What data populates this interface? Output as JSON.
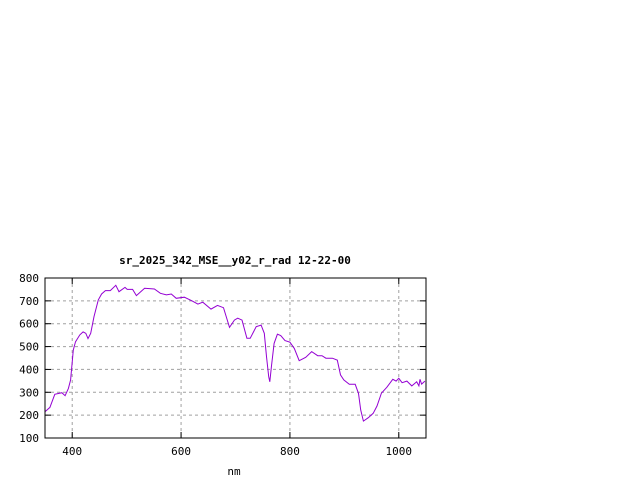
{
  "chart_data": {
    "type": "line",
    "title": "sr_2025_342_MSE__y02_r_rad 12-22-00",
    "xlabel": "nm",
    "ylabel": "",
    "xlim": [
      350,
      1050
    ],
    "ylim": [
      100,
      800
    ],
    "xticks": [
      400,
      600,
      800,
      1000
    ],
    "yticks": [
      100,
      200,
      300,
      400,
      500,
      600,
      700,
      800
    ],
    "grid": true,
    "line_color": "#9400d3",
    "series": [
      {
        "x": [
          350,
          359,
          368,
          381,
          387,
          393,
          397,
          402,
          406,
          414,
          420,
          425,
          429,
          434,
          440,
          448,
          454,
          461,
          470,
          480,
          486,
          497,
          501,
          511,
          518,
          533,
          551,
          562,
          573,
          582,
          591,
          606,
          619,
          631,
          640,
          655,
          667,
          678,
          689,
          698,
          704,
          712,
          721,
          727,
          738,
          747,
          753,
          757,
          761,
          763,
          766,
          771,
          777,
          783,
          791,
          800,
          808,
          817,
          829,
          840,
          851,
          859,
          866,
          878,
          887,
          893,
          899,
          909,
          920,
          926,
          930,
          935,
          944,
          953,
          960,
          968,
          978,
          989,
          995,
          1000,
          1006,
          1015,
          1024,
          1033,
          1037,
          1039,
          1042,
          1048
        ],
        "y": [
          215,
          234,
          291,
          298,
          285,
          317,
          354,
          485,
          521,
          551,
          564,
          558,
          535,
          558,
          631,
          704,
          730,
          745,
          745,
          768,
          740,
          759,
          750,
          750,
          723,
          755,
          752,
          733,
          726,
          730,
          711,
          716,
          701,
          686,
          694,
          664,
          680,
          670,
          584,
          616,
          624,
          616,
          536,
          536,
          587,
          594,
          558,
          456,
          368,
          346,
          412,
          514,
          554,
          548,
          526,
          519,
          492,
          438,
          453,
          478,
          460,
          460,
          449,
          449,
          441,
          376,
          354,
          335,
          335,
          295,
          223,
          174,
          189,
          208,
          240,
          296,
          322,
          357,
          349,
          361,
          342,
          349,
          328,
          346,
          328,
          357,
          336,
          349
        ]
      }
    ]
  }
}
